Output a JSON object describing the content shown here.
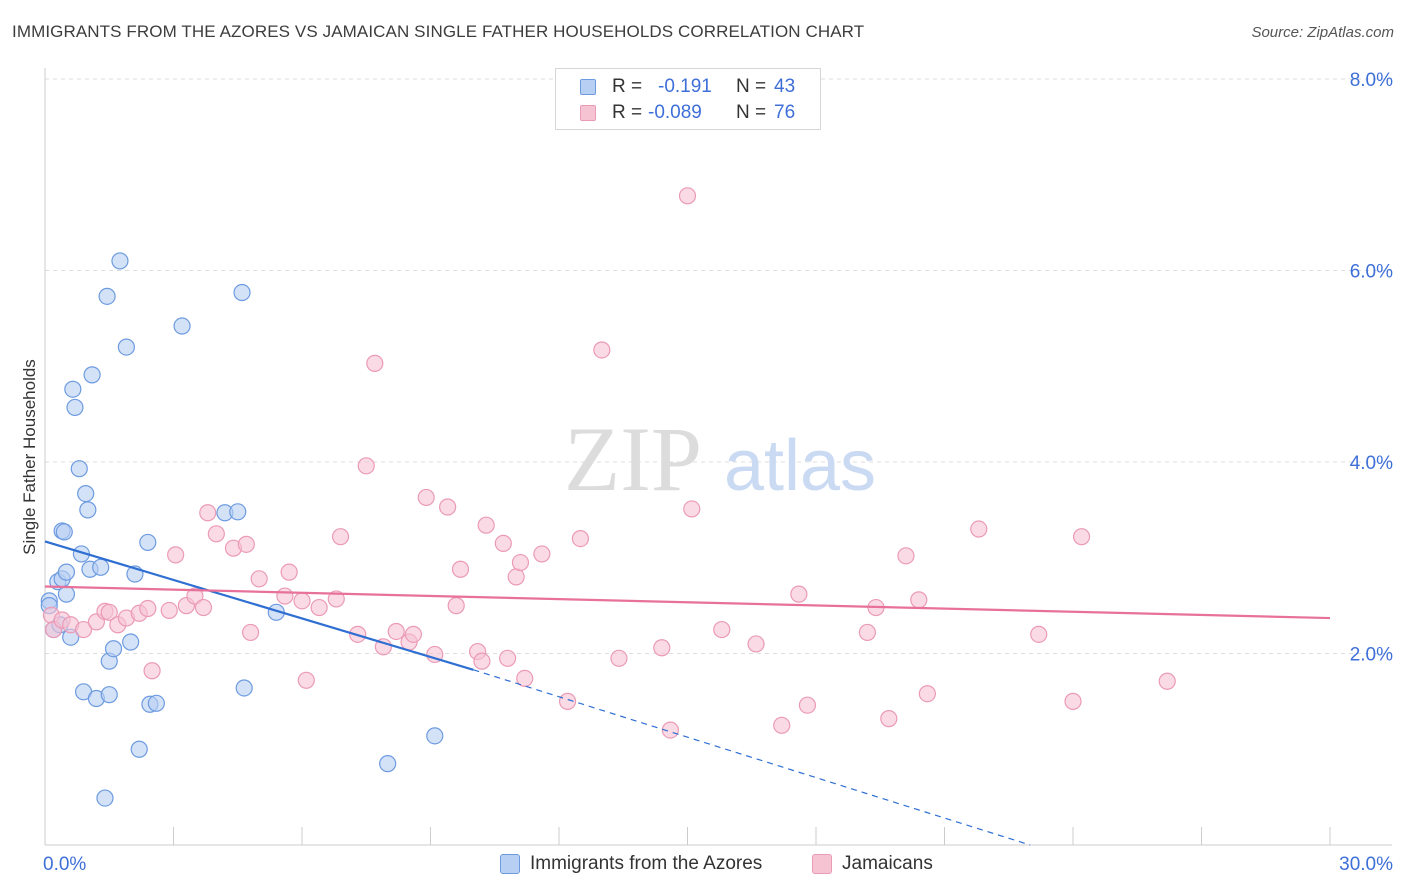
{
  "header": {
    "title": "IMMIGRANTS FROM THE AZORES VS JAMAICAN SINGLE FATHER HOUSEHOLDS CORRELATION CHART",
    "source": "Source: ZipAtlas.com"
  },
  "watermark": {
    "zip": "ZIP",
    "atlas": "atlas"
  },
  "colors": {
    "blue_fill": "#b7cff3",
    "blue_stroke": "#6d9be0",
    "blue_line": "#2f6fd2",
    "pink_fill": "#f6c3d3",
    "pink_stroke": "#eb9ab6",
    "pink_line": "#e8719a",
    "axis_text": "#3e6fd8",
    "grid": "#dddddd"
  },
  "legend": {
    "rows": [
      {
        "r_label": "R =",
        "r_value": "-0.191",
        "n_label": "N =",
        "n_value": "43"
      },
      {
        "r_label": "R =",
        "r_value": "-0.089",
        "n_label": "N =",
        "n_value": "76"
      }
    ]
  },
  "chart_data": {
    "type": "scatter",
    "title": "IMMIGRANTS FROM THE AZORES VS JAMAICAN SINGLE FATHER HOUSEHOLDS CORRELATION CHART",
    "xlabel": "",
    "ylabel": "Single Father Households",
    "xlim": [
      0,
      30
    ],
    "ylim": [
      0,
      8
    ],
    "x_tick_labels": {
      "left": "0.0%",
      "right": "30.0%"
    },
    "y_ticks": [
      {
        "value": 2,
        "label": "2.0%"
      },
      {
        "value": 4,
        "label": "4.0%"
      },
      {
        "value": 6,
        "label": "6.0%"
      },
      {
        "value": 8,
        "label": "8.0%"
      }
    ],
    "grid": true,
    "legend_position": "top-center",
    "series": [
      {
        "name": "Immigrants from the Azores",
        "color": "blue",
        "points": [
          [
            0.1,
            2.55
          ],
          [
            0.1,
            2.5
          ],
          [
            0.2,
            2.25
          ],
          [
            0.3,
            2.75
          ],
          [
            0.35,
            2.3
          ],
          [
            0.4,
            2.78
          ],
          [
            0.4,
            3.28
          ],
          [
            0.45,
            3.27
          ],
          [
            0.5,
            2.85
          ],
          [
            0.5,
            2.62
          ],
          [
            0.6,
            2.17
          ],
          [
            0.65,
            4.76
          ],
          [
            0.7,
            4.57
          ],
          [
            0.8,
            3.93
          ],
          [
            0.85,
            3.04
          ],
          [
            0.9,
            1.6
          ],
          [
            0.95,
            3.67
          ],
          [
            1.0,
            3.5
          ],
          [
            1.05,
            2.88
          ],
          [
            1.1,
            4.91
          ],
          [
            1.2,
            1.53
          ],
          [
            1.3,
            2.9
          ],
          [
            1.4,
            0.49
          ],
          [
            1.45,
            5.73
          ],
          [
            1.5,
            1.92
          ],
          [
            1.5,
            1.57
          ],
          [
            1.6,
            2.05
          ],
          [
            1.75,
            6.1
          ],
          [
            1.9,
            5.2
          ],
          [
            2.0,
            2.12
          ],
          [
            2.1,
            2.83
          ],
          [
            2.2,
            1.0
          ],
          [
            2.4,
            3.16
          ],
          [
            2.45,
            1.47
          ],
          [
            2.6,
            1.48
          ],
          [
            3.2,
            5.42
          ],
          [
            4.2,
            3.47
          ],
          [
            4.5,
            3.48
          ],
          [
            4.6,
            5.77
          ],
          [
            4.65,
            1.64
          ],
          [
            5.4,
            2.43
          ],
          [
            8.0,
            0.85
          ],
          [
            9.1,
            1.14
          ]
        ],
        "trend": {
          "x0": 0,
          "y0": 3.17,
          "x1": 10.0,
          "y1": 1.83,
          "dash_to_x": 23.0,
          "dash_to_y": 0.0
        }
      },
      {
        "name": "Jamaicans",
        "color": "pink",
        "points": [
          [
            0.15,
            2.4
          ],
          [
            0.2,
            2.25
          ],
          [
            0.4,
            2.35
          ],
          [
            0.6,
            2.3
          ],
          [
            0.9,
            2.25
          ],
          [
            1.2,
            2.33
          ],
          [
            1.4,
            2.44
          ],
          [
            1.5,
            2.43
          ],
          [
            1.7,
            2.3
          ],
          [
            1.9,
            2.37
          ],
          [
            2.2,
            2.42
          ],
          [
            2.4,
            2.47
          ],
          [
            2.5,
            1.82
          ],
          [
            2.9,
            2.45
          ],
          [
            3.05,
            3.03
          ],
          [
            3.3,
            2.5
          ],
          [
            3.5,
            2.6
          ],
          [
            3.7,
            2.48
          ],
          [
            3.8,
            3.47
          ],
          [
            4.0,
            3.25
          ],
          [
            4.4,
            3.1
          ],
          [
            4.7,
            3.14
          ],
          [
            4.8,
            2.22
          ],
          [
            5.0,
            2.78
          ],
          [
            5.6,
            2.6
          ],
          [
            5.7,
            2.85
          ],
          [
            6.0,
            2.55
          ],
          [
            6.1,
            1.72
          ],
          [
            6.4,
            2.48
          ],
          [
            6.8,
            2.57
          ],
          [
            6.9,
            3.22
          ],
          [
            7.3,
            2.2
          ],
          [
            7.5,
            3.96
          ],
          [
            7.7,
            5.03
          ],
          [
            7.9,
            2.07
          ],
          [
            8.2,
            2.23
          ],
          [
            8.5,
            2.12
          ],
          [
            8.6,
            2.2
          ],
          [
            8.9,
            3.63
          ],
          [
            9.1,
            1.99
          ],
          [
            9.4,
            3.53
          ],
          [
            9.6,
            2.5
          ],
          [
            9.7,
            2.88
          ],
          [
            10.1,
            2.02
          ],
          [
            10.2,
            1.92
          ],
          [
            10.3,
            3.34
          ],
          [
            10.7,
            3.15
          ],
          [
            10.8,
            1.95
          ],
          [
            11.0,
            2.8
          ],
          [
            11.1,
            2.95
          ],
          [
            11.2,
            1.74
          ],
          [
            11.6,
            3.04
          ],
          [
            12.2,
            1.5
          ],
          [
            12.5,
            3.2
          ],
          [
            13.0,
            5.17
          ],
          [
            13.4,
            1.95
          ],
          [
            14.4,
            2.06
          ],
          [
            14.6,
            1.2
          ],
          [
            15.0,
            6.78
          ],
          [
            15.1,
            3.51
          ],
          [
            15.8,
            2.25
          ],
          [
            16.6,
            2.1
          ],
          [
            17.2,
            1.25
          ],
          [
            17.6,
            2.62
          ],
          [
            17.8,
            1.46
          ],
          [
            19.2,
            2.22
          ],
          [
            19.4,
            2.48
          ],
          [
            19.7,
            1.32
          ],
          [
            20.1,
            3.02
          ],
          [
            20.4,
            2.56
          ],
          [
            20.6,
            1.58
          ],
          [
            21.8,
            3.3
          ],
          [
            23.2,
            2.2
          ],
          [
            24.0,
            1.5
          ],
          [
            24.2,
            3.22
          ],
          [
            26.2,
            1.71
          ]
        ],
        "trend": {
          "x0": 0,
          "y0": 2.7,
          "x1": 30.0,
          "y1": 2.37
        }
      }
    ]
  }
}
